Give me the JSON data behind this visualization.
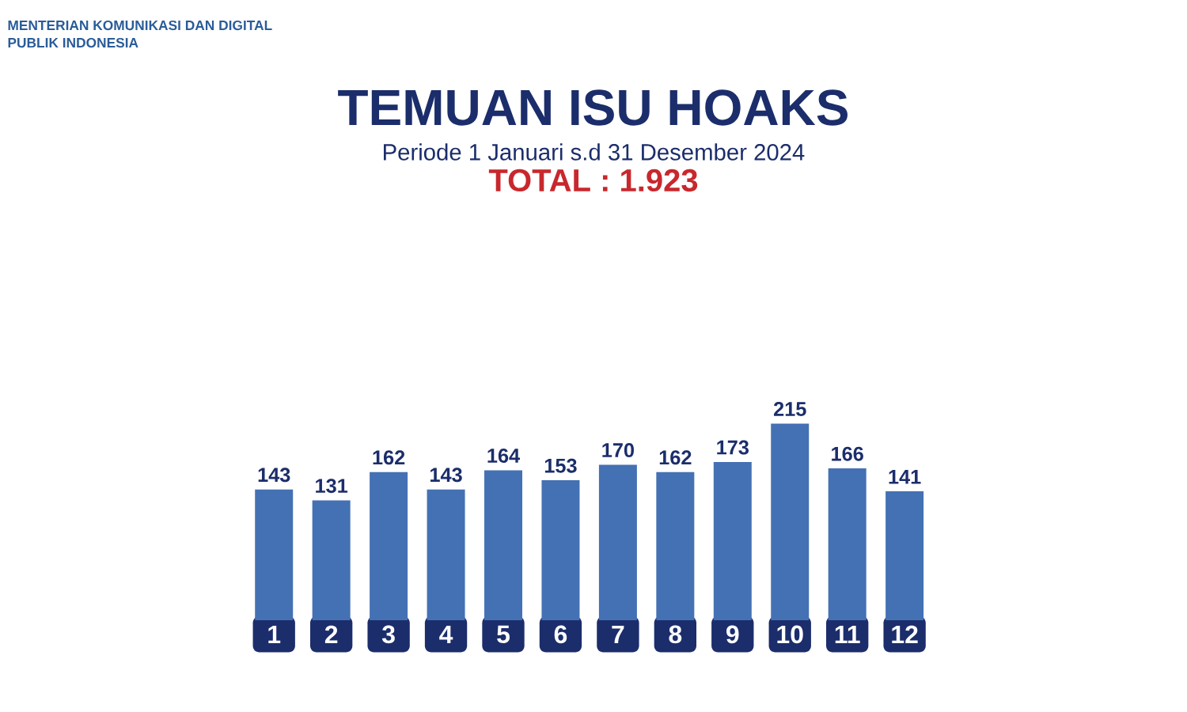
{
  "chart_data": {
    "type": "bar",
    "title": "TEMUAN ISU HOAKS",
    "subtitle": "Periode 1 Januari s.d 31 Desember 2024",
    "annotations": [
      "MENTERIAN KOMUNIKASI DAN DIGITAL",
      "PUBLIK INDONESIA",
      "TOTAL : 1.923"
    ],
    "categories": [
      "1",
      "2",
      "3",
      "4",
      "5",
      "6",
      "7",
      "8",
      "9",
      "10",
      "11",
      "12"
    ],
    "values": [
      143,
      131,
      162,
      143,
      164,
      153,
      170,
      162,
      173,
      215,
      166,
      141
    ],
    "color": "#4471b4",
    "data_labels": true
  }
}
